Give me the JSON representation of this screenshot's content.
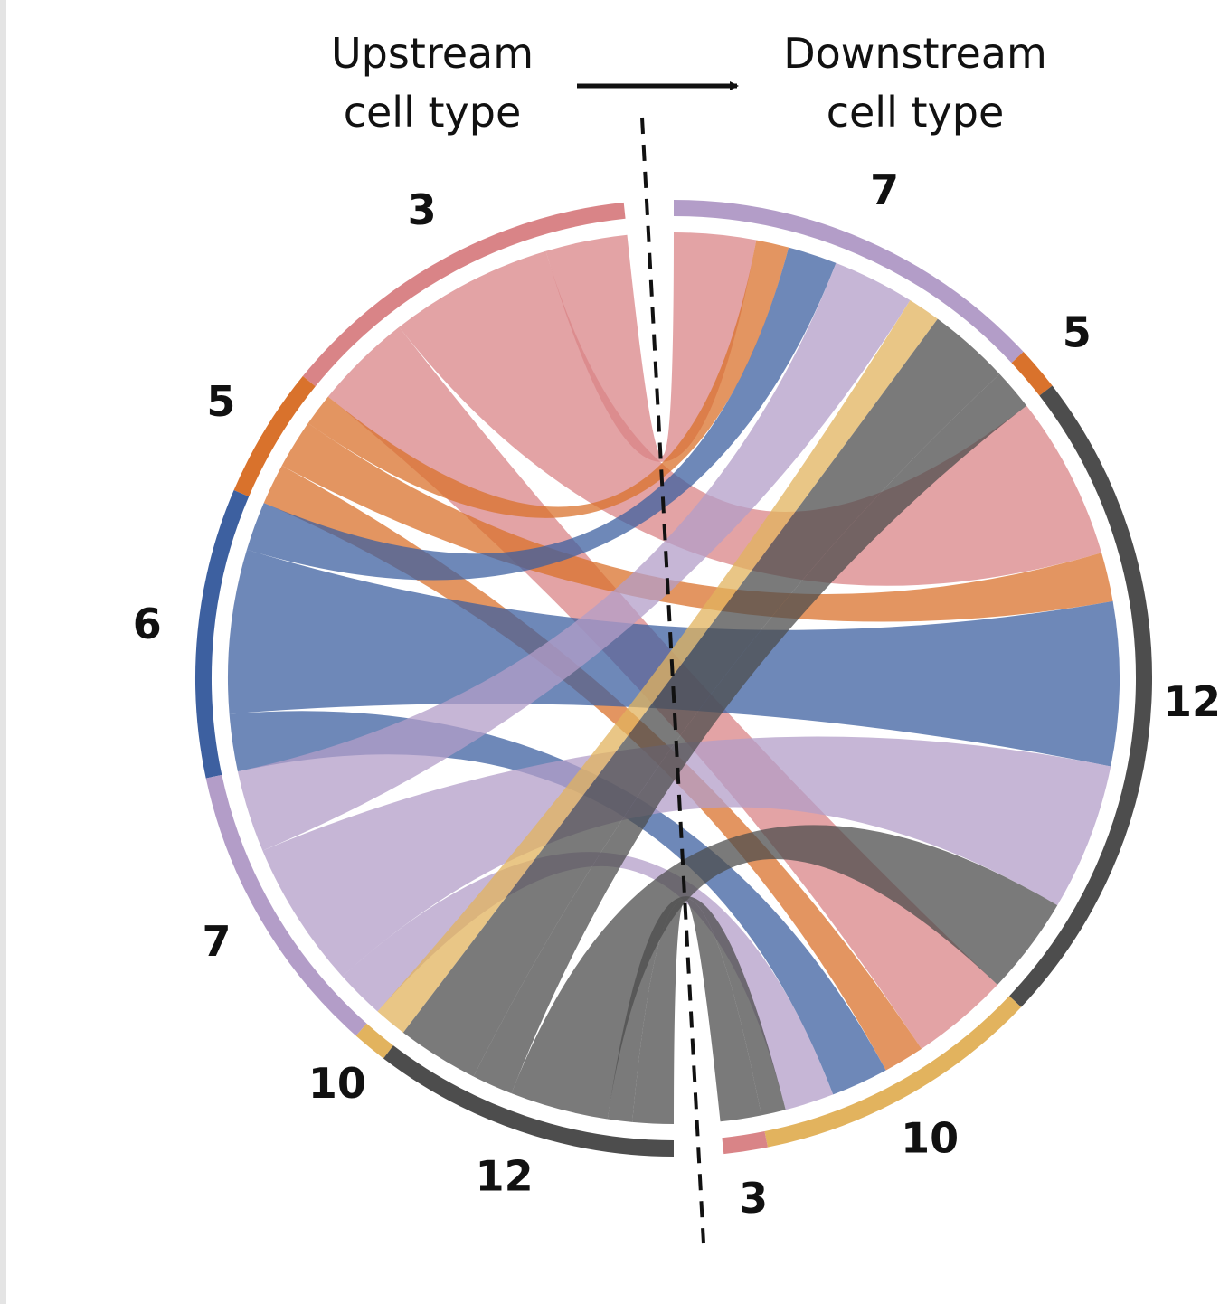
{
  "chart_data": {
    "type": "chord",
    "upstream_title": [
      "Upstream",
      "cell type"
    ],
    "downstream_title": [
      "Downstream",
      "cell type"
    ],
    "upstream": [
      {
        "name": "3",
        "color": "#d98487"
      },
      {
        "name": "5",
        "color": "#d9722c"
      },
      {
        "name": "6",
        "color": "#3d60a0"
      },
      {
        "name": "7",
        "color": "#b39dc8"
      },
      {
        "name": "10",
        "color": "#e2b35e"
      },
      {
        "name": "12",
        "color": "#4d4d4d"
      }
    ],
    "downstream": [
      {
        "name": "7",
        "color": "#b39dc8"
      },
      {
        "name": "5",
        "color": "#d9722c"
      },
      {
        "name": "12",
        "color": "#4d4d4d"
      },
      {
        "name": "10",
        "color": "#e2b35e"
      },
      {
        "name": "3",
        "color": "#d98487"
      }
    ],
    "links": [
      {
        "from": "3",
        "to": "7",
        "value": 10
      },
      {
        "from": "3",
        "to": "12",
        "value": 20
      },
      {
        "from": "3",
        "to": "10",
        "value": 12
      },
      {
        "from": "5",
        "to": "7",
        "value": 4
      },
      {
        "from": "5",
        "to": "12",
        "value": 6
      },
      {
        "from": "5",
        "to": "10",
        "value": 5
      },
      {
        "from": "6",
        "to": "7",
        "value": 6
      },
      {
        "from": "6",
        "to": "12",
        "value": 20
      },
      {
        "from": "6",
        "to": "10",
        "value": 7
      },
      {
        "from": "7",
        "to": "7",
        "value": 10
      },
      {
        "from": "7",
        "to": "12",
        "value": 18
      },
      {
        "from": "7",
        "to": "10",
        "value": 6
      },
      {
        "from": "10",
        "to": "7",
        "value": 4
      },
      {
        "from": "12",
        "to": "7",
        "value": 10
      },
      {
        "from": "12",
        "to": "5",
        "value": 5
      },
      {
        "from": "12",
        "to": "12",
        "value": 12
      },
      {
        "from": "12",
        "to": "10",
        "value": 3
      },
      {
        "from": "12",
        "to": "3",
        "value": 5
      }
    ]
  }
}
